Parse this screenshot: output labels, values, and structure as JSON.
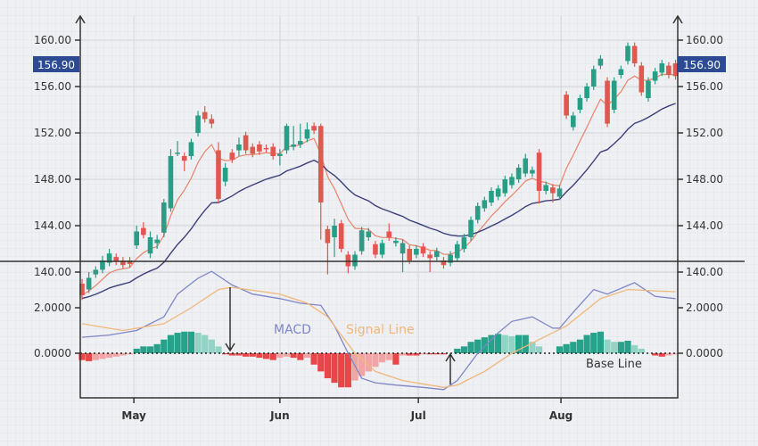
{
  "chart_data": [
    {
      "type": "candlestick",
      "panel": "price",
      "y_ticks": [
        "160.00",
        "156.00",
        "152.00",
        "148.00",
        "144.00",
        "140.00"
      ],
      "y_tick_values": [
        160,
        156,
        152,
        148,
        144,
        140
      ],
      "ylim": [
        137.5,
        161.5
      ],
      "last_price_label": "156.90",
      "last_price": 156.9,
      "colors": {
        "up": "#2a9d86",
        "down": "#e0584f",
        "fast_ma": "#e8836a",
        "slow_ma": "#3b3f78",
        "label_bg": "#2d4b93"
      },
      "candles_ohlc": [
        [
          139.0,
          139.4,
          137.6,
          138.0
        ],
        [
          138.5,
          140.0,
          138.2,
          139.5
        ],
        [
          139.8,
          140.5,
          139.5,
          140.2
        ],
        [
          140.2,
          141.4,
          139.9,
          141.0
        ],
        [
          140.8,
          142.0,
          140.5,
          141.6
        ],
        [
          141.3,
          141.6,
          140.6,
          140.9
        ],
        [
          141.0,
          141.3,
          140.3,
          140.6
        ],
        [
          141.0,
          141.3,
          140.4,
          140.7
        ],
        [
          142.3,
          144.0,
          142.0,
          143.5
        ],
        [
          143.8,
          144.3,
          142.9,
          143.2
        ],
        [
          141.6,
          143.5,
          141.2,
          143.0
        ],
        [
          142.5,
          143.2,
          142.0,
          142.8
        ],
        [
          143.4,
          146.3,
          143.0,
          146.0
        ],
        [
          145.5,
          150.6,
          145.2,
          150.0
        ],
        [
          150.3,
          151.3,
          150.0,
          150.3
        ],
        [
          150.0,
          150.3,
          148.7,
          149.6
        ],
        [
          150.0,
          151.5,
          149.7,
          151.2
        ],
        [
          152.0,
          153.9,
          151.7,
          153.5
        ],
        [
          153.8,
          154.3,
          152.9,
          153.2
        ],
        [
          153.2,
          153.6,
          152.4,
          152.8
        ],
        [
          150.5,
          151.2,
          145.9,
          146.3
        ],
        [
          147.8,
          149.4,
          147.4,
          149.0
        ],
        [
          150.3,
          150.6,
          149.4,
          149.7
        ],
        [
          150.5,
          151.6,
          150.0,
          151.0
        ],
        [
          151.8,
          152.1,
          150.2,
          150.5
        ],
        [
          150.8,
          151.1,
          149.9,
          150.2
        ],
        [
          151.0,
          151.3,
          150.1,
          150.4
        ],
        [
          150.7,
          151.0,
          150.3,
          150.6
        ],
        [
          150.8,
          151.1,
          149.7,
          150.0
        ],
        [
          150.0,
          150.6,
          149.2,
          150.2
        ],
        [
          150.5,
          152.8,
          150.2,
          152.6
        ],
        [
          150.8,
          152.6,
          150.5,
          151.0
        ],
        [
          151.0,
          152.8,
          150.7,
          151.3
        ],
        [
          151.5,
          152.9,
          151.2,
          152.3
        ],
        [
          152.6,
          152.9,
          151.9,
          152.2
        ],
        [
          152.6,
          152.8,
          142.8,
          146.0
        ],
        [
          143.7,
          144.0,
          139.8,
          142.5
        ],
        [
          143.0,
          144.6,
          141.3,
          144.0
        ],
        [
          144.2,
          144.5,
          141.7,
          142.0
        ],
        [
          141.5,
          141.8,
          139.9,
          140.5
        ],
        [
          140.5,
          141.8,
          140.2,
          141.5
        ],
        [
          141.8,
          143.9,
          141.5,
          143.6
        ],
        [
          143.0,
          143.8,
          142.7,
          143.5
        ],
        [
          142.4,
          142.7,
          141.2,
          141.5
        ],
        [
          141.5,
          142.8,
          141.2,
          142.5
        ],
        [
          143.5,
          144.2,
          142.7,
          143.0
        ],
        [
          142.5,
          143.0,
          142.2,
          142.7
        ],
        [
          141.6,
          142.8,
          140.0,
          142.5
        ],
        [
          142.0,
          142.3,
          140.7,
          141.0
        ],
        [
          141.5,
          142.3,
          141.2,
          142.0
        ],
        [
          142.2,
          142.5,
          141.3,
          141.6
        ],
        [
          141.5,
          141.8,
          140.0,
          141.2
        ],
        [
          141.3,
          142.1,
          141.0,
          141.8
        ],
        [
          141.0,
          141.3,
          140.3,
          140.6
        ],
        [
          140.8,
          141.8,
          140.5,
          141.5
        ],
        [
          141.2,
          142.7,
          140.9,
          142.4
        ],
        [
          142.0,
          143.3,
          141.7,
          143.0
        ],
        [
          143.0,
          144.8,
          142.7,
          144.5
        ],
        [
          144.5,
          146.0,
          144.2,
          145.7
        ],
        [
          145.5,
          146.5,
          145.2,
          146.2
        ],
        [
          146.0,
          147.3,
          145.7,
          147.0
        ],
        [
          146.5,
          147.5,
          146.2,
          147.2
        ],
        [
          146.8,
          148.3,
          146.5,
          148.0
        ],
        [
          147.5,
          148.5,
          147.2,
          148.2
        ],
        [
          148.0,
          149.3,
          147.7,
          149.0
        ],
        [
          148.5,
          150.2,
          148.2,
          149.8
        ],
        [
          148.5,
          149.1,
          148.2,
          148.8
        ],
        [
          150.3,
          150.6,
          145.9,
          147.0
        ],
        [
          147.0,
          147.8,
          146.7,
          147.5
        ],
        [
          147.3,
          147.6,
          146.0,
          146.8
        ],
        [
          146.5,
          147.5,
          146.2,
          147.2
        ],
        [
          155.3,
          155.6,
          153.2,
          153.5
        ],
        [
          152.5,
          153.8,
          152.2,
          153.5
        ],
        [
          154.0,
          155.3,
          153.7,
          155.0
        ],
        [
          155.0,
          156.3,
          154.7,
          156.0
        ],
        [
          156.0,
          157.8,
          155.7,
          157.5
        ],
        [
          157.8,
          158.7,
          157.5,
          158.4
        ],
        [
          156.5,
          156.8,
          152.5,
          152.8
        ],
        [
          154.0,
          156.8,
          153.7,
          156.5
        ],
        [
          157.0,
          157.8,
          156.7,
          157.5
        ],
        [
          158.2,
          159.8,
          157.9,
          159.5
        ],
        [
          159.5,
          159.8,
          157.7,
          158.0
        ],
        [
          157.8,
          158.1,
          155.2,
          155.5
        ],
        [
          155.0,
          156.8,
          154.7,
          156.5
        ],
        [
          156.5,
          157.6,
          156.2,
          157.3
        ],
        [
          157.2,
          158.3,
          156.9,
          158.0
        ],
        [
          157.8,
          158.1,
          156.7,
          157.0
        ],
        [
          158.0,
          158.3,
          156.6,
          156.9
        ]
      ]
    },
    {
      "type": "line+bar",
      "panel": "macd",
      "y_ticks": [
        "2.0000",
        "0.0000"
      ],
      "y_tick_values": [
        2,
        0
      ],
      "ylim": [
        -2.0,
        4.0
      ],
      "x_ticks": [
        {
          "label": "May",
          "index": 7.6
        },
        {
          "label": "Jun",
          "index": 29
        },
        {
          "label": "Jul",
          "index": 49.3
        },
        {
          "label": "Aug",
          "index": 70.2
        }
      ],
      "annotations": {
        "macd": "MACD",
        "signal": "Signal Line",
        "base": "Base Line"
      },
      "colors": {
        "macd": "#7f86c6",
        "signal": "#f0b77a",
        "hist_up_strong": "#27a18a",
        "hist_up_weak": "#92d3c5",
        "hist_down_strong": "#e8474a",
        "hist_down_weak": "#f2a3a3"
      },
      "macd": [
        [
          0,
          0.7
        ],
        [
          4,
          0.8
        ],
        [
          8,
          1.0
        ],
        [
          12,
          1.6
        ],
        [
          14,
          2.6
        ],
        [
          17,
          3.3
        ],
        [
          19,
          3.6
        ],
        [
          22,
          3.0
        ],
        [
          25,
          2.6
        ],
        [
          29,
          2.4
        ],
        [
          32,
          2.2
        ],
        [
          35,
          2.1
        ],
        [
          37,
          1.2
        ],
        [
          39,
          0.0
        ],
        [
          41,
          -1.1
        ],
        [
          43,
          -1.3
        ],
        [
          46,
          -1.4
        ],
        [
          50,
          -1.5
        ],
        [
          53,
          -1.6
        ],
        [
          55,
          -1.2
        ],
        [
          58,
          0.0
        ],
        [
          61,
          0.9
        ],
        [
          63,
          1.4
        ],
        [
          66,
          1.6
        ],
        [
          69,
          1.1
        ],
        [
          70,
          1.1
        ],
        [
          72,
          1.8
        ],
        [
          75,
          2.8
        ],
        [
          77,
          2.6
        ],
        [
          81,
          3.1
        ],
        [
          84,
          2.5
        ],
        [
          87,
          2.4
        ]
      ],
      "signal": [
        [
          0,
          1.3
        ],
        [
          6,
          1.0
        ],
        [
          12,
          1.3
        ],
        [
          16,
          2.0
        ],
        [
          20,
          2.8
        ],
        [
          22,
          2.9
        ],
        [
          29,
          2.6
        ],
        [
          33,
          2.2
        ],
        [
          36,
          1.6
        ],
        [
          40,
          0.0
        ],
        [
          43,
          -0.8
        ],
        [
          47,
          -1.2
        ],
        [
          53,
          -1.5
        ],
        [
          55,
          -1.4
        ],
        [
          59,
          -0.8
        ],
        [
          63,
          0.0
        ],
        [
          67,
          0.6
        ],
        [
          71,
          1.2
        ],
        [
          76,
          2.4
        ],
        [
          80,
          2.8
        ],
        [
          87,
          2.7
        ]
      ],
      "histogram": [
        -0.3,
        -0.35,
        -0.3,
        -0.25,
        -0.2,
        -0.15,
        -0.1,
        -0.05,
        0.2,
        0.3,
        0.3,
        0.4,
        0.6,
        0.8,
        0.9,
        0.95,
        0.95,
        0.9,
        0.8,
        0.6,
        0.3,
        -0.05,
        -0.1,
        -0.1,
        -0.15,
        -0.15,
        -0.2,
        -0.25,
        -0.3,
        -0.2,
        -0.15,
        -0.2,
        -0.3,
        -0.2,
        -0.5,
        -0.8,
        -1.1,
        -1.3,
        -1.5,
        -1.5,
        -1.2,
        -1.0,
        -0.8,
        -0.6,
        -0.4,
        -0.3,
        -0.5,
        -0.1,
        -0.1,
        -0.1,
        -0.05,
        -0.05,
        -0.05,
        -0.05,
        0,
        0.2,
        0.3,
        0.5,
        0.6,
        0.7,
        0.8,
        0.85,
        0.8,
        0.75,
        0.8,
        0.8,
        0.5,
        0.3,
        0,
        0,
        0.3,
        0.4,
        0.5,
        0.6,
        0.8,
        0.9,
        0.95,
        0.6,
        0.5,
        0.5,
        0.55,
        0.35,
        0.2,
        0,
        -0.1,
        -0.15,
        -0.1,
        -0.05
      ]
    }
  ]
}
